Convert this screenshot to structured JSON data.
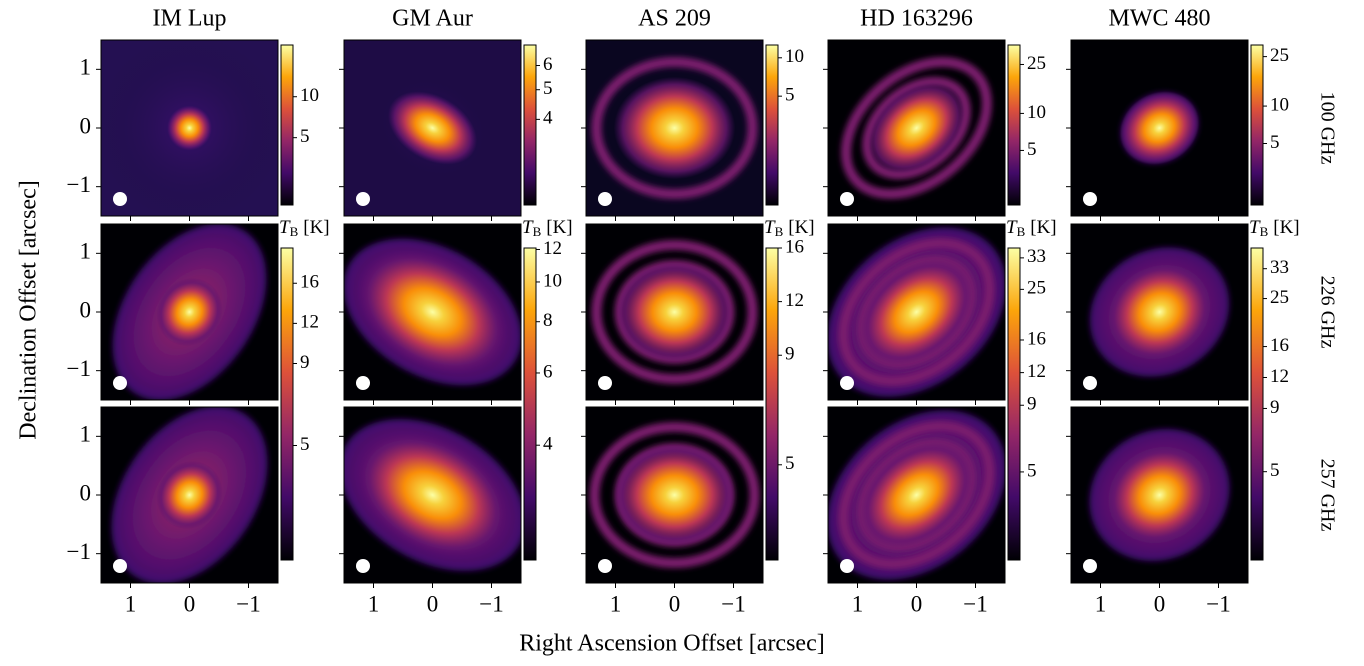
{
  "chart_data": {
    "type": "image_grid",
    "titles": [
      "IM Lup",
      "GM Aur",
      "AS 209",
      "HD 163296",
      "MWC 480"
    ],
    "row_labels": [
      "100 GHz",
      "226 GHz",
      "257 GHz"
    ],
    "xlabel": "Right Ascension Offset [arcsec]",
    "ylabel": "Declination Offset [arcsec]",
    "xlim": [
      1.5,
      -1.5
    ],
    "ylim": [
      -1.5,
      1.5
    ],
    "xticks": [
      1,
      0,
      {
        "value": -1,
        "label": "−1"
      }
    ],
    "yticks": [
      {
        "value": -1,
        "label": "−1"
      },
      0,
      1
    ],
    "colorbar_label": {
      "symbol": "T",
      "subscript": "B",
      "unit": "[K]"
    },
    "colorbar_scale": "log",
    "colorbars_100ghz": [
      {
        "ylim": [
          1.6,
          24
        ],
        "yticks": [
          5,
          10
        ]
      },
      {
        "ylim": [
          2.1,
          7.0
        ],
        "yticks": [
          4,
          5,
          6
        ]
      },
      {
        "ylim": [
          0.7,
          12.6
        ],
        "yticks": [
          5,
          10
        ]
      },
      {
        "ylim": [
          1.8,
          36
        ],
        "yticks": [
          5,
          10,
          25
        ]
      },
      {
        "ylim": [
          1.6,
          31
        ],
        "yticks": [
          5,
          10,
          25
        ]
      }
    ],
    "colorbars_226_257ghz": [
      {
        "ylim": [
          2.2,
          20.6
        ],
        "yticks": [
          5,
          9,
          12,
          16
        ]
      },
      {
        "ylim": [
          2.1,
          12.1
        ],
        "yticks": [
          4,
          6,
          8,
          10,
          12
        ]
      },
      {
        "ylim": [
          3.0,
          16
        ],
        "yticks": [
          5,
          9,
          12,
          16
        ]
      },
      {
        "ylim": [
          2.3,
          36
        ],
        "yticks": [
          5,
          9,
          12,
          16,
          25,
          33
        ]
      },
      {
        "ylim": [
          2.2,
          40
        ],
        "yticks": [
          5,
          9,
          12,
          16,
          25,
          33
        ]
      }
    ]
  }
}
